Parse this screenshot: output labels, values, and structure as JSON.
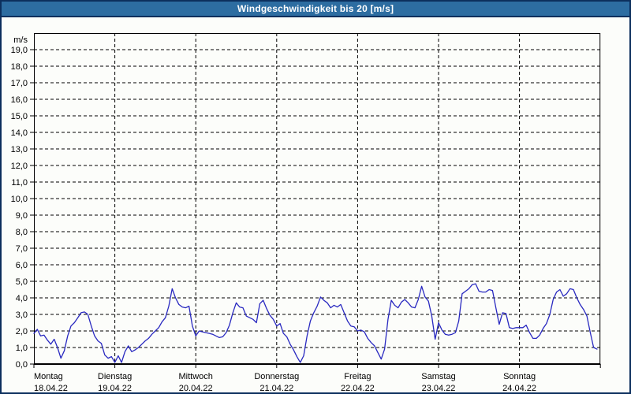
{
  "title_bar": {
    "text": "Windgeschwindigkeit bis 20 [m/s]",
    "bg_color": "#2d6da1",
    "text_color": "#ffffff"
  },
  "colors": {
    "frame_border": "#0c2f5d",
    "page_bg": "#fcfdfa",
    "plot_border": "#000000",
    "grid": "#000000",
    "line": "#2929c0",
    "label": "#000000"
  },
  "chart_data": {
    "type": "line",
    "title": "Windgeschwindigkeit bis 20 [m/s]",
    "y_unit_label": "m/s",
    "ylim": [
      0,
      20
    ],
    "y_tick_step": 1.0,
    "y_tick_decimal_separator": ",",
    "grid": true,
    "grid_style": "dashed",
    "legend": "none",
    "sample_interval_hours": 1,
    "x_days": [
      {
        "name": "Montag",
        "date": "18.04.22"
      },
      {
        "name": "Dienstag",
        "date": "19.04.22"
      },
      {
        "name": "Mittwoch",
        "date": "20.04.22"
      },
      {
        "name": "Donnerstag",
        "date": "21.04.22"
      },
      {
        "name": "Freitag",
        "date": "22.04.22"
      },
      {
        "name": "Samstag",
        "date": "23.04.22"
      },
      {
        "name": "Sonntag",
        "date": "24.04.22"
      }
    ],
    "values_m_s": [
      1.85,
      2.1,
      1.7,
      1.75,
      1.45,
      1.2,
      1.5,
      1.0,
      0.35,
      0.8,
      1.7,
      2.3,
      2.5,
      2.8,
      3.1,
      3.15,
      3.0,
      2.3,
      1.7,
      1.4,
      1.25,
      0.55,
      0.35,
      0.45,
      0.1,
      0.5,
      0.1,
      0.75,
      1.1,
      0.75,
      0.85,
      1.0,
      1.2,
      1.4,
      1.55,
      1.8,
      2.0,
      2.2,
      2.55,
      2.8,
      3.5,
      4.55,
      4.0,
      3.6,
      3.45,
      3.4,
      3.5,
      2.3,
      1.7,
      2.0,
      1.95,
      1.9,
      1.85,
      1.8,
      1.7,
      1.6,
      1.65,
      1.9,
      2.35,
      3.1,
      3.7,
      3.45,
      3.4,
      2.9,
      2.8,
      2.7,
      2.5,
      3.65,
      3.85,
      3.35,
      2.95,
      2.7,
      2.3,
      2.45,
      1.85,
      1.65,
      1.2,
      0.85,
      0.45,
      0.1,
      0.5,
      1.7,
      2.6,
      3.1,
      3.5,
      4.05,
      3.85,
      3.7,
      3.4,
      3.55,
      3.45,
      3.6,
      3.1,
      2.6,
      2.3,
      2.25,
      2.0,
      2.05,
      1.95,
      1.55,
      1.3,
      1.1,
      0.7,
      0.3,
      0.9,
      2.7,
      3.85,
      3.55,
      3.4,
      3.75,
      3.9,
      3.7,
      3.45,
      3.4,
      3.9,
      4.7,
      4.05,
      3.8,
      2.9,
      1.5,
      2.5,
      2.05,
      1.8,
      1.75,
      1.8,
      1.9,
      2.6,
      4.25,
      4.4,
      4.55,
      4.8,
      4.85,
      4.4,
      4.35,
      4.35,
      4.5,
      4.45,
      3.4,
      2.4,
      3.1,
      3.05,
      2.2,
      2.15,
      2.2,
      2.2,
      2.2,
      2.35,
      1.9,
      1.55,
      1.55,
      1.75,
      2.15,
      2.45,
      3.0,
      3.9,
      4.35,
      4.5,
      4.1,
      4.25,
      4.55,
      4.5,
      4.0,
      3.6,
      3.3,
      2.9,
      1.9,
      1.0,
      0.9
    ]
  }
}
